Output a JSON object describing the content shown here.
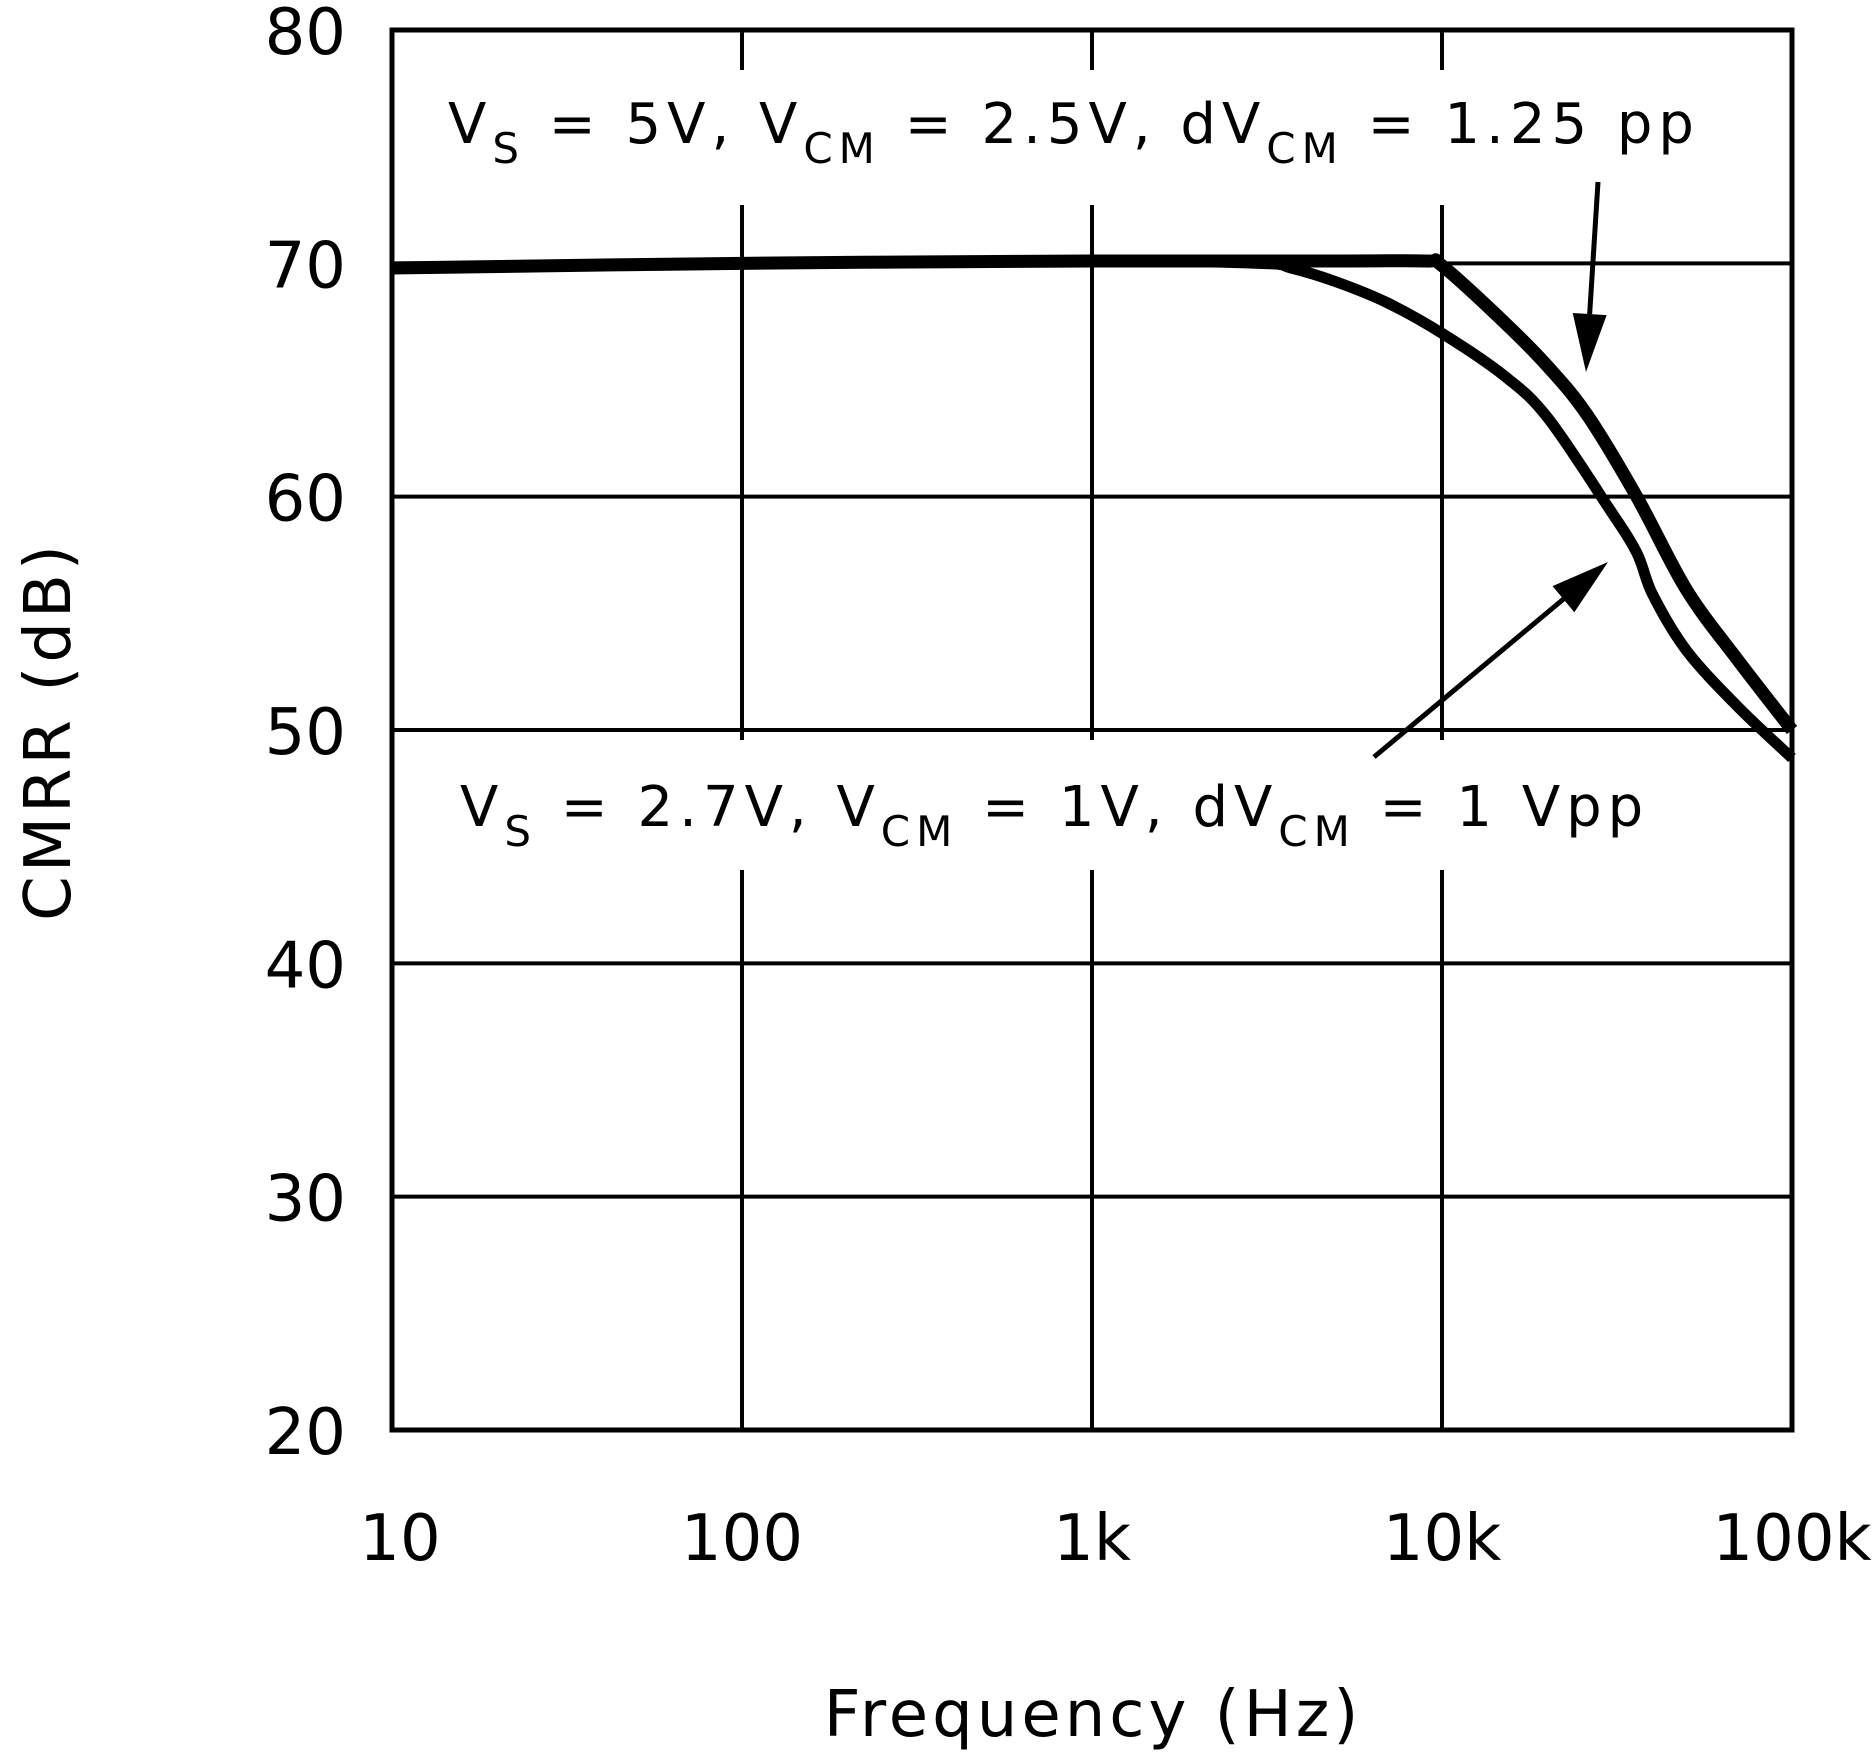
{
  "chart_data": {
    "type": "line",
    "xlabel": "Frequency (Hz)",
    "ylabel": "CMRR (dB)",
    "xscale": "log",
    "xlim": [
      10,
      100000
    ],
    "ylim": [
      20,
      80
    ],
    "grid": true,
    "xticks": [
      10,
      100,
      1000,
      10000,
      100000
    ],
    "xtick_labels": [
      "10",
      "100",
      "1k",
      "10k",
      "100k"
    ],
    "yticks": [
      20,
      30,
      40,
      50,
      60,
      70,
      80
    ],
    "ytick_labels": [
      "20",
      "30",
      "40",
      "50",
      "60",
      "70",
      "80"
    ],
    "line_color": "#000000",
    "series": [
      {
        "annotation": {
          "parts": [
            [
              "V",
              ""
            ],
            [
              "S",
              "sub"
            ],
            [
              " = 5V, V",
              ""
            ],
            [
              "CM",
              "sub"
            ],
            [
              " = 2.5V, dV",
              ""
            ],
            [
              "CM",
              "sub"
            ],
            [
              " = 1.25 pp",
              ""
            ]
          ]
        },
        "x": [
          10,
          100,
          1000,
          5000,
          9000,
          10000,
          15000,
          20000,
          26000,
          36000,
          50000,
          70000,
          100000
        ],
        "y": [
          69.8,
          70.0,
          70.1,
          70.1,
          70.1,
          69.9,
          67.5,
          65.6,
          63.5,
          60.0,
          56.0,
          53.0,
          50.0
        ]
      },
      {
        "annotation": {
          "parts": [
            [
              "V",
              ""
            ],
            [
              "S",
              "sub"
            ],
            [
              " = 2.7V, V",
              ""
            ],
            [
              "CM",
              "sub"
            ],
            [
              " = 1V, dV",
              ""
            ],
            [
              "CM",
              "sub"
            ],
            [
              " = 1 Vpp",
              ""
            ]
          ]
        },
        "x": [
          10,
          100,
          1000,
          3000,
          3700,
          5000,
          7000,
          10000,
          15000,
          20000,
          30000,
          36000,
          40000,
          50000,
          70000,
          100000
        ],
        "y": [
          69.8,
          70.0,
          70.1,
          70.0,
          69.8,
          69.2,
          68.3,
          67.0,
          65.2,
          63.4,
          59.5,
          57.6,
          55.8,
          53.4,
          51.0,
          48.8
        ]
      }
    ]
  }
}
